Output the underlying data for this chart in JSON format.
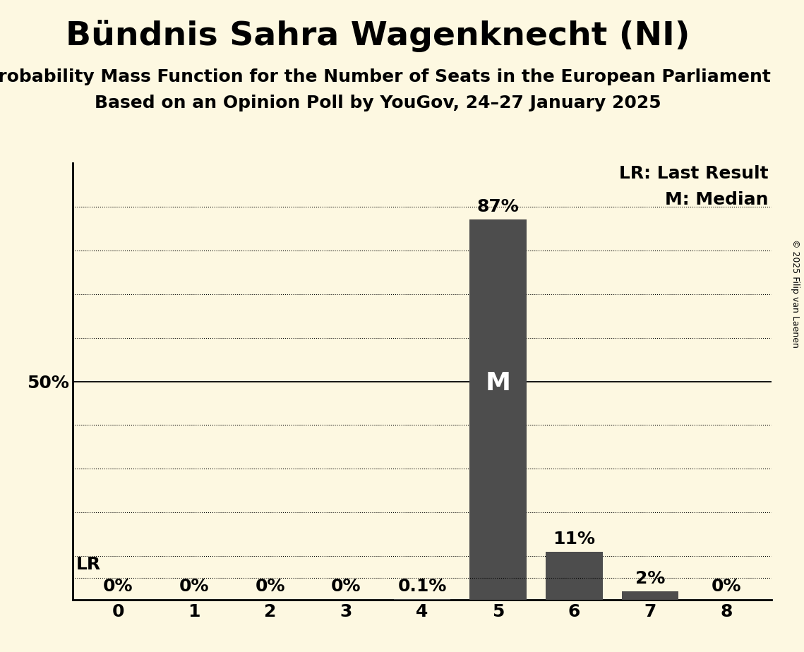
{
  "title": "Bündnis Sahra Wagenknecht (NI)",
  "subtitle1": "Probability Mass Function for the Number of Seats in the European Parliament",
  "subtitle2": "Based on an Opinion Poll by YouGov, 24–27 January 2025",
  "copyright": "© 2025 Filip van Laenen",
  "categories": [
    0,
    1,
    2,
    3,
    4,
    5,
    6,
    7,
    8
  ],
  "values": [
    0.0,
    0.0,
    0.0,
    0.0,
    0.001,
    0.87,
    0.11,
    0.02,
    0.0
  ],
  "bar_labels": [
    "0%",
    "0%",
    "0%",
    "0%",
    "0.1%",
    "87%",
    "11%",
    "2%",
    "0%"
  ],
  "bar_color": "#4d4d4d",
  "background_color": "#fdf8e1",
  "median_seat": 5,
  "median_label": "M",
  "lr_value": 0.05,
  "lr_label": "LR",
  "legend_lr": "LR: Last Result",
  "legend_m": "M: Median",
  "ylim_max": 1.0,
  "ytick_positions": [
    0.1,
    0.2,
    0.3,
    0.4,
    0.5,
    0.6,
    0.7,
    0.8,
    0.9
  ],
  "ylabel_50": "50%",
  "title_fontsize": 34,
  "subtitle1_fontsize": 18,
  "subtitle2_fontsize": 18,
  "bar_label_fontsize": 18,
  "tick_fontsize": 18,
  "legend_fontsize": 18,
  "median_label_fontsize": 26,
  "lr_label_fontsize": 18,
  "copyright_fontsize": 9,
  "bar_width": 0.75
}
